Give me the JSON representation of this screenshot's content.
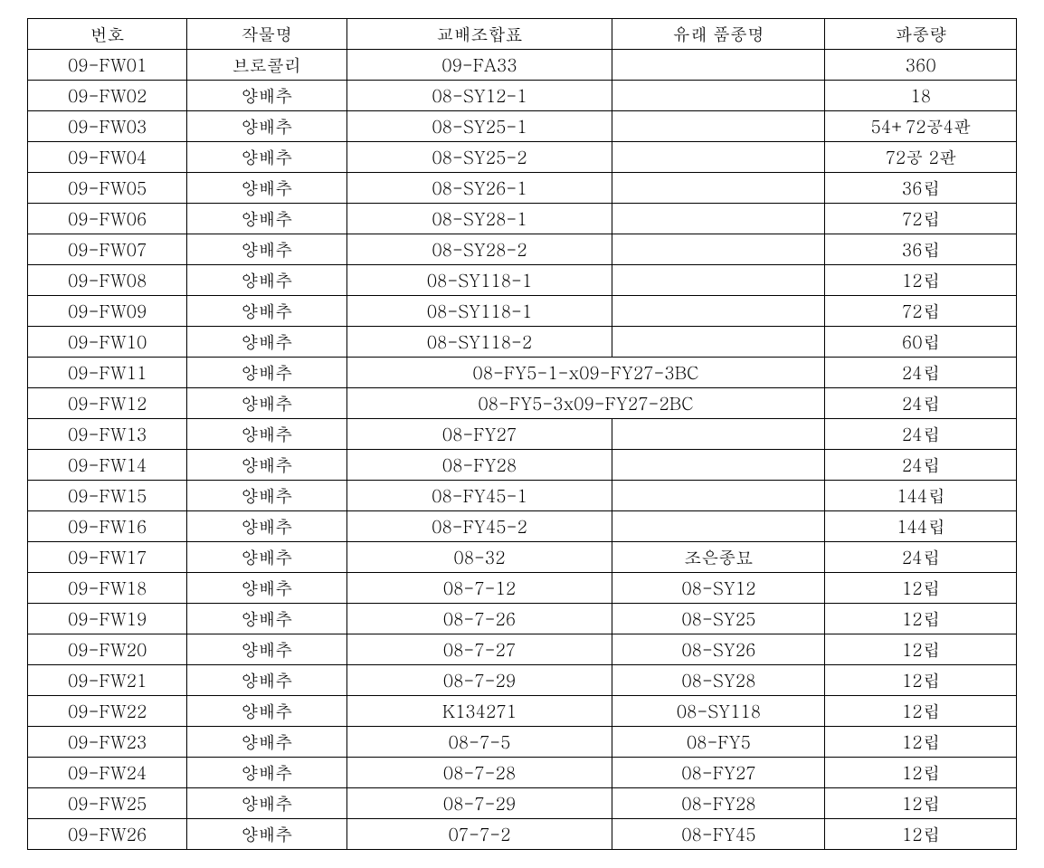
{
  "table": {
    "headers": [
      "번호",
      "작물명",
      "교배조합표",
      "유래 품종명",
      "파종량"
    ],
    "col_classes": [
      "col-num",
      "col-crop",
      "col-cross",
      "col-origin",
      "col-qty"
    ],
    "rows": [
      {
        "num": "09-FW01",
        "crop": "브로콜리",
        "cross": "09-FA33",
        "origin": "",
        "qty": "360",
        "merge": false
      },
      {
        "num": "09-FW02",
        "crop": "양배추",
        "cross": "08-SY12-1",
        "origin": "",
        "qty": "18",
        "merge": false
      },
      {
        "num": "09-FW03",
        "crop": "양배추",
        "cross": "08-SY25-1",
        "origin": "",
        "qty": "54+72공4판",
        "merge": false
      },
      {
        "num": "09-FW04",
        "crop": "양배추",
        "cross": "08-SY25-2",
        "origin": "",
        "qty": "72공 2판",
        "merge": false
      },
      {
        "num": "09-FW05",
        "crop": "양배추",
        "cross": "08-SY26-1",
        "origin": "",
        "qty": "36립",
        "merge": false
      },
      {
        "num": "09-FW06",
        "crop": "양배추",
        "cross": "08-SY28-1",
        "origin": "",
        "qty": "72립",
        "merge": false
      },
      {
        "num": "09-FW07",
        "crop": "양배추",
        "cross": "08-SY28-2",
        "origin": "",
        "qty": "36립",
        "merge": false
      },
      {
        "num": "09-FW08",
        "crop": "양배추",
        "cross": "08-SY118-1",
        "origin": "",
        "qty": "12립",
        "merge": false
      },
      {
        "num": "09-FW09",
        "crop": "양배추",
        "cross": "08-SY118-1",
        "origin": "",
        "qty": "72립",
        "merge": false
      },
      {
        "num": "09-FW10",
        "crop": "양배추",
        "cross": "08-SY118-2",
        "origin": "",
        "qty": "60립",
        "merge": false
      },
      {
        "num": "09-FW11",
        "crop": "양배추",
        "cross": "08-FY5-1-x09-FY27-3BC",
        "origin": "",
        "qty": "24립",
        "merge": true
      },
      {
        "num": "09-FW12",
        "crop": "양배추",
        "cross": "08-FY5-3x09-FY27-2BC",
        "origin": "",
        "qty": "24립",
        "merge": true
      },
      {
        "num": "09-FW13",
        "crop": "양배추",
        "cross": "08-FY27",
        "origin": "",
        "qty": "24립",
        "merge": false
      },
      {
        "num": "09-FW14",
        "crop": "양배추",
        "cross": "08-FY28",
        "origin": "",
        "qty": "24립",
        "merge": false
      },
      {
        "num": "09-FW15",
        "crop": "양배추",
        "cross": "08-FY45-1",
        "origin": "",
        "qty": "144립",
        "merge": false
      },
      {
        "num": "09-FW16",
        "crop": "양배추",
        "cross": "08-FY45-2",
        "origin": "",
        "qty": "144립",
        "merge": false
      },
      {
        "num": "09-FW17",
        "crop": "양배추",
        "cross": "08-32",
        "origin": "조은종묘",
        "qty": "24립",
        "merge": false
      },
      {
        "num": "09-FW18",
        "crop": "양배추",
        "cross": "08-7-12",
        "origin": "08-SY12",
        "qty": "12립",
        "merge": false
      },
      {
        "num": "09-FW19",
        "crop": "양배추",
        "cross": "08-7-26",
        "origin": "08-SY25",
        "qty": "12립",
        "merge": false
      },
      {
        "num": "09-FW20",
        "crop": "양배추",
        "cross": "08-7-27",
        "origin": "08-SY26",
        "qty": "12립",
        "merge": false
      },
      {
        "num": "09-FW21",
        "crop": "양배추",
        "cross": "08-7-29",
        "origin": "08-SY28",
        "qty": "12립",
        "merge": false
      },
      {
        "num": "09-FW22",
        "crop": "양배추",
        "cross": "K134271",
        "origin": "08-SY118",
        "qty": "12립",
        "merge": false
      },
      {
        "num": "09-FW23",
        "crop": "양배추",
        "cross": "08-7-5",
        "origin": "08-FY5",
        "qty": "12립",
        "merge": false
      },
      {
        "num": "09-FW24",
        "crop": "양배추",
        "cross": "08-7-28",
        "origin": "08-FY27",
        "qty": "12립",
        "merge": false
      },
      {
        "num": "09-FW25",
        "crop": "양배추",
        "cross": "08-7-29",
        "origin": "08-FY28",
        "qty": "12립",
        "merge": false
      },
      {
        "num": "09-FW26",
        "crop": "양배추",
        "cross": "07-7-2",
        "origin": "08-FY45",
        "qty": "12립",
        "merge": false
      }
    ]
  }
}
